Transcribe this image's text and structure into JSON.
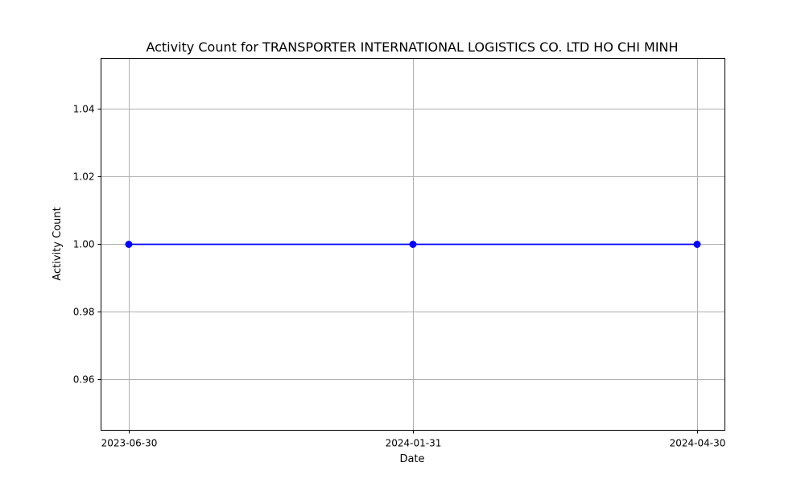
{
  "chart_data": {
    "type": "line",
    "title": "Activity Count for TRANSPORTER INTERNATIONAL LOGISTICS CO. LTD HO CHI MINH",
    "xlabel": "Date",
    "ylabel": "Activity Count",
    "x": [
      "2023-06-30",
      "2024-01-31",
      "2024-04-30"
    ],
    "x_tick_labels": [
      "2023-06-30",
      "2024-01-31",
      "2024-04-30"
    ],
    "series": [
      {
        "values": [
          1.0,
          1.0,
          1.0
        ],
        "color": "#0000ff",
        "marker": "circle"
      }
    ],
    "ylim": [
      0.945,
      1.055
    ],
    "y_ticks": [
      0.96,
      0.98,
      1.0,
      1.02,
      1.04
    ],
    "y_tick_labels": [
      "0.96",
      "0.98",
      "1.00",
      "1.02",
      "1.04"
    ],
    "grid": true,
    "grid_color": "#b0b0b0"
  }
}
